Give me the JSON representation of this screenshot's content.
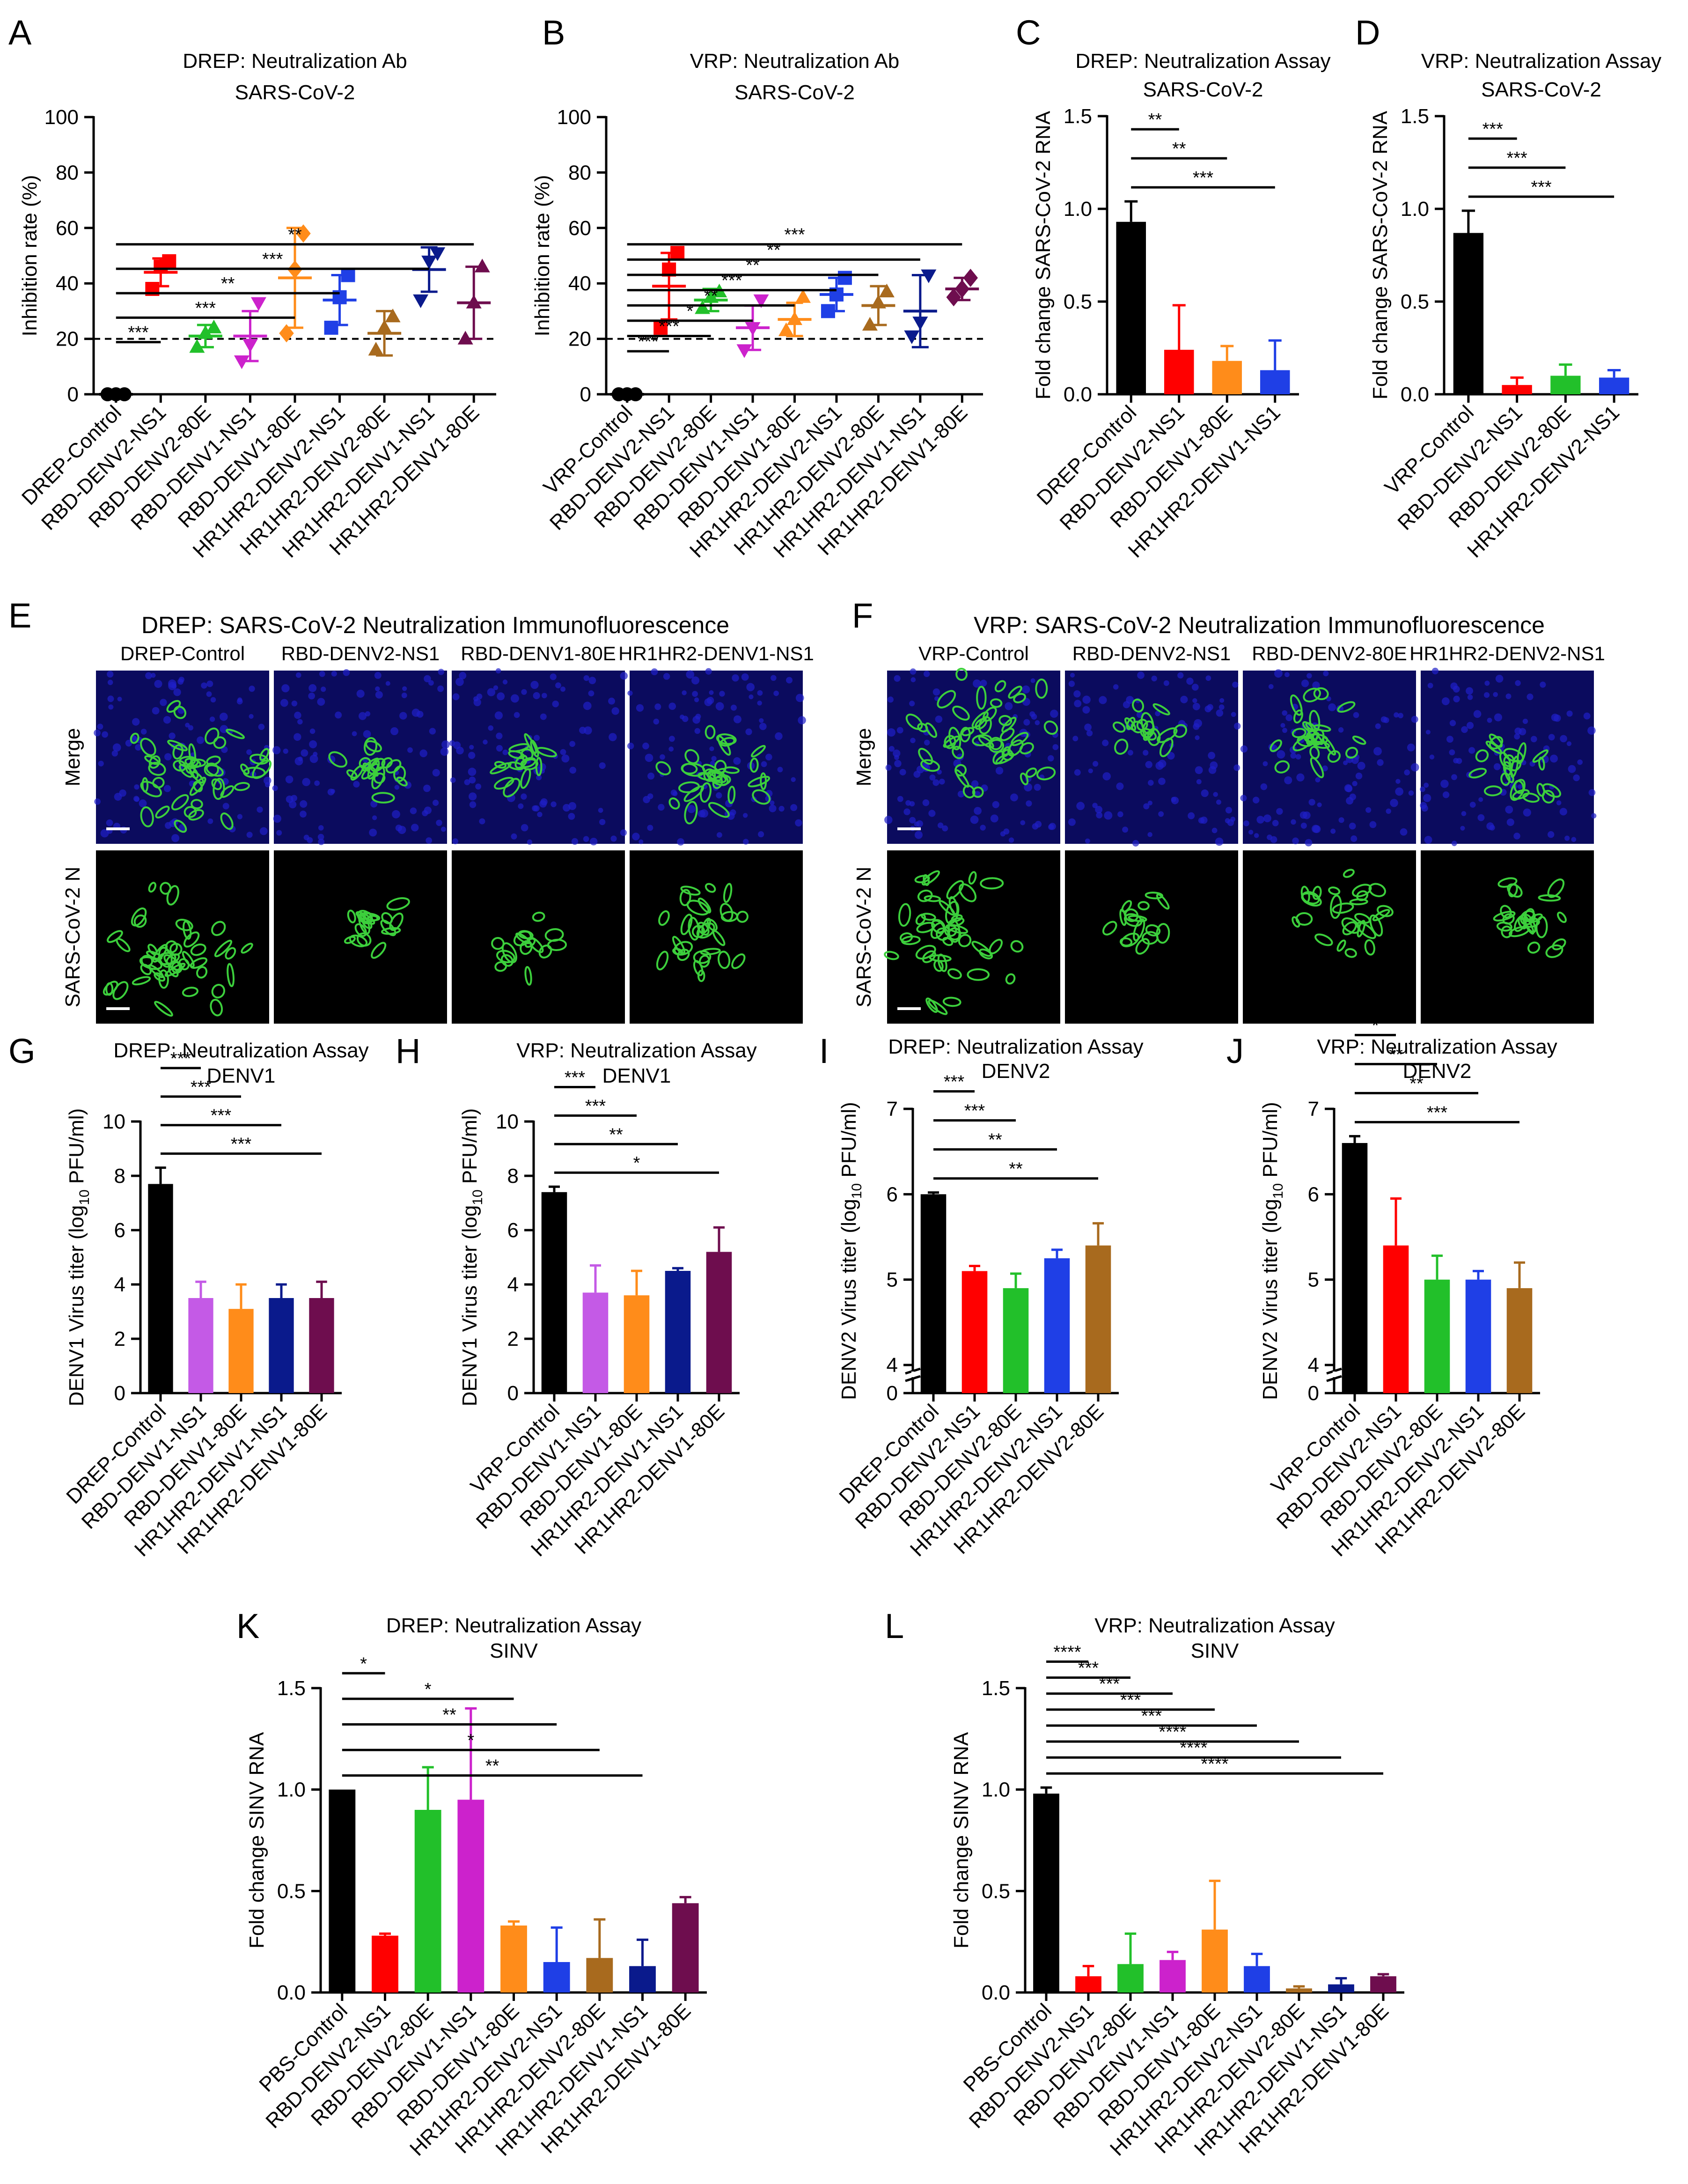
{
  "colors": {
    "black": "#000000",
    "red": "#ff0000",
    "green": "#22c02a",
    "magenta": "#cc22cc",
    "orange": "#ff8c1a",
    "blue": "#1f3fe6",
    "brown": "#a86a1e",
    "navy": "#0a1a8c",
    "maroon": "#6e0d4e",
    "purple": "#c45ae6",
    "nucleus_blue": "#1a1acc",
    "cell_green": "#3ccf3c"
  },
  "chart_data": [
    {
      "panel": "A",
      "type": "scatter",
      "title": "DREP: Neutralization Ab",
      "subtitle": "SARS-CoV-2",
      "ylabel": "Inhibition rate (%)",
      "ylim": [
        0,
        100
      ],
      "yticks": [
        "0",
        "20",
        "40",
        "60",
        "80",
        "100"
      ],
      "categories": [
        "DREP-Control",
        "RBD-DENV2-NS1",
        "RBD-DENV2-80E",
        "RBD-DENV1-NS1",
        "RBD-DENV1-80E",
        "HR1HR2-DENV2-NS1",
        "HR1HR2-DENV2-80E",
        "HR1HR2-DENV1-NS1",
        "HR1HR2-DENV1-80E"
      ],
      "colors": [
        "#000000",
        "#ff0000",
        "#22c02a",
        "#cc22cc",
        "#ff8c1a",
        "#1f3fe6",
        "#a86a1e",
        "#0a1a8c",
        "#6e0d4e"
      ],
      "markers": [
        "circle",
        "square",
        "triangle",
        "tri-down",
        "diamond",
        "square",
        "triangle",
        "tri-down",
        "triangle"
      ],
      "means": [
        0,
        44,
        21,
        21,
        42,
        34,
        22,
        45,
        33
      ],
      "sd": [
        0,
        5,
        4,
        9,
        18,
        9,
        8,
        8,
        13
      ],
      "points": [
        [
          0,
          0,
          0
        ],
        [
          38,
          46,
          48
        ],
        [
          17,
          22,
          24
        ],
        [
          12,
          18,
          33
        ],
        [
          22,
          45,
          58
        ],
        [
          24,
          35,
          43
        ],
        [
          16,
          24,
          28
        ],
        [
          34,
          48,
          51
        ],
        [
          20,
          33,
          46
        ]
      ],
      "reference_line": 20,
      "significance": [
        {
          "to": 1,
          "label": "***"
        },
        {
          "to": 4,
          "label": "***"
        },
        {
          "to": 5,
          "label": "**"
        },
        {
          "to": 7,
          "label": "***"
        },
        {
          "to": 8,
          "label": "**"
        }
      ]
    },
    {
      "panel": "B",
      "type": "scatter",
      "title": "VRP: Neutralization Ab",
      "subtitle": "SARS-CoV-2",
      "ylabel": "Inhibition rate (%)",
      "ylim": [
        0,
        100
      ],
      "yticks": [
        "0",
        "20",
        "40",
        "60",
        "80",
        "100"
      ],
      "categories": [
        "VRP-Control",
        "RBD-DENV2-NS1",
        "RBD-DENV2-80E",
        "RBD-DENV1-NS1",
        "RBD-DENV1-80E",
        "HR1HR2-DENV2-NS1",
        "HR1HR2-DENV2-80E",
        "HR1HR2-DENV1-NS1",
        "HR1HR2-DENV1-80E"
      ],
      "colors": [
        "#000000",
        "#ff0000",
        "#22c02a",
        "#cc22cc",
        "#ff8c1a",
        "#1f3fe6",
        "#a86a1e",
        "#0a1a8c",
        "#6e0d4e"
      ],
      "markers": [
        "circle",
        "square",
        "triangle",
        "tri-down",
        "triangle",
        "square",
        "triangle",
        "tri-down",
        "diamond"
      ],
      "means": [
        0,
        39,
        34,
        24,
        27,
        36,
        32,
        30,
        38
      ],
      "sd": [
        0,
        12,
        4,
        8,
        6,
        6,
        7,
        13,
        4
      ],
      "points": [
        [
          0,
          0,
          0
        ],
        [
          24,
          45,
          51
        ],
        [
          31,
          35,
          37
        ],
        [
          16,
          24,
          34
        ],
        [
          23,
          27,
          35
        ],
        [
          30,
          36,
          42
        ],
        [
          25,
          33,
          37
        ],
        [
          21,
          26,
          43
        ],
        [
          35,
          38,
          42
        ]
      ],
      "reference_line": 20,
      "significance": [
        {
          "to": 1,
          "label": "***"
        },
        {
          "to": 2,
          "label": "***"
        },
        {
          "to": 3,
          "label": "*"
        },
        {
          "to": 4,
          "label": "**"
        },
        {
          "to": 5,
          "label": "***"
        },
        {
          "to": 6,
          "label": "**"
        },
        {
          "to": 7,
          "label": "**"
        },
        {
          "to": 8,
          "label": "***"
        }
      ]
    },
    {
      "panel": "C",
      "type": "bar",
      "title": "DREP: Neutralization Assay",
      "subtitle": "SARS-CoV-2",
      "ylabel": "Fold change SARS-CoV-2 RNA",
      "ylim": [
        0,
        1.5
      ],
      "yticks": [
        "0.0",
        "0.5",
        "1.0",
        "1.5"
      ],
      "categories": [
        "DREP-Control",
        "RBD-DENV2-NS1",
        "RBD-DENV1-80E",
        "HR1HR2-DENV1-NS1"
      ],
      "colors": [
        "#000000",
        "#ff0000",
        "#ff8c1a",
        "#1f3fe6"
      ],
      "values": [
        0.93,
        0.24,
        0.18,
        0.13
      ],
      "errors": [
        0.11,
        0.24,
        0.08,
        0.16
      ],
      "significance": [
        {
          "to": 1,
          "label": "**"
        },
        {
          "to": 2,
          "label": "**"
        },
        {
          "to": 3,
          "label": "***"
        }
      ]
    },
    {
      "panel": "D",
      "type": "bar",
      "title": "VRP: Neutralization Assay",
      "subtitle": "SARS-CoV-2",
      "ylabel": "Fold change SARS-CoV-2 RNA",
      "ylim": [
        0,
        1.5
      ],
      "yticks": [
        "0.0",
        "0.5",
        "1.0",
        "1.5"
      ],
      "categories": [
        "VRP-Control",
        "RBD-DENV2-NS1",
        "RBD-DENV2-80E",
        "HR1HR2-DENV2-NS1"
      ],
      "colors": [
        "#000000",
        "#ff0000",
        "#22c02a",
        "#1f3fe6"
      ],
      "values": [
        0.87,
        0.05,
        0.1,
        0.09
      ],
      "errors": [
        0.12,
        0.04,
        0.06,
        0.04
      ],
      "significance": [
        {
          "to": 1,
          "label": "***"
        },
        {
          "to": 2,
          "label": "***"
        },
        {
          "to": 3,
          "label": "***"
        }
      ]
    },
    {
      "panel": "G",
      "type": "bar",
      "title": "DREP: Neutralization Assay",
      "subtitle": "DENV1",
      "ylabel": "DENV1 Virus titer (log",
      "ylabel_sub": "10",
      "ylabel_end": " PFU/ml)",
      "ylim": [
        0,
        10
      ],
      "yticks": [
        "0",
        "2",
        "4",
        "6",
        "8",
        "10"
      ],
      "categories": [
        "DREP-Control",
        "RBD-DENV1-NS1",
        "RBD-DENV1-80E",
        "HR1HR2-DENV1-NS1",
        "HR1HR2-DENV1-80E"
      ],
      "colors": [
        "#000000",
        "#c45ae6",
        "#ff8c1a",
        "#0a1a8c",
        "#6e0d4e"
      ],
      "values": [
        7.7,
        3.5,
        3.1,
        3.5,
        3.5
      ],
      "errors": [
        0.6,
        0.6,
        0.9,
        0.5,
        0.6
      ],
      "significance": [
        {
          "to": 1,
          "label": "***"
        },
        {
          "to": 2,
          "label": "***"
        },
        {
          "to": 3,
          "label": "***"
        },
        {
          "to": 4,
          "label": "***"
        }
      ]
    },
    {
      "panel": "H",
      "type": "bar",
      "title": "VRP: Neutralization Assay",
      "subtitle": "DENV1",
      "ylabel": "DENV1 Virus titer (log",
      "ylabel_sub": "10",
      "ylabel_end": " PFU/ml)",
      "ylim": [
        0,
        10
      ],
      "yticks": [
        "0",
        "2",
        "4",
        "6",
        "8",
        "10"
      ],
      "categories": [
        "VRP-Control",
        "RBD-DENV1-NS1",
        "RBD-DENV1-80E",
        "HR1HR2-DENV1-NS1",
        "HR1HR2-DENV1-80E"
      ],
      "colors": [
        "#000000",
        "#c45ae6",
        "#ff8c1a",
        "#0a1a8c",
        "#6e0d4e"
      ],
      "values": [
        7.4,
        3.7,
        3.6,
        4.5,
        5.2
      ],
      "errors": [
        0.2,
        1.0,
        0.9,
        0.1,
        0.9
      ],
      "significance": [
        {
          "to": 1,
          "label": "***"
        },
        {
          "to": 2,
          "label": "***"
        },
        {
          "to": 3,
          "label": "**"
        },
        {
          "to": 4,
          "label": "*"
        }
      ]
    },
    {
      "panel": "I",
      "type": "bar",
      "axis_break": true,
      "title": "DREP: Neutralization Assay",
      "subtitle": "DENV2",
      "ylabel": "DENV2 Virus titer (log",
      "ylabel_sub": "10",
      "ylabel_end": " PFU/ml)",
      "ylim": [
        4,
        7
      ],
      "yticks": [
        "4",
        "5",
        "6",
        "7"
      ],
      "categories": [
        "DREP-Control",
        "RBD-DENV2-NS1",
        "RBD-DENV2-80E",
        "HR1HR2-DENV2-NS1",
        "HR1HR2-DENV2-80E"
      ],
      "colors": [
        "#000000",
        "#ff0000",
        "#22c02a",
        "#1f3fe6",
        "#a86a1e"
      ],
      "values": [
        6.0,
        5.1,
        4.9,
        5.25,
        5.4
      ],
      "errors": [
        0.02,
        0.06,
        0.17,
        0.1,
        0.26
      ],
      "significance": [
        {
          "to": 1,
          "label": "***"
        },
        {
          "to": 2,
          "label": "***"
        },
        {
          "to": 3,
          "label": "**"
        },
        {
          "to": 4,
          "label": "**"
        }
      ]
    },
    {
      "panel": "J",
      "type": "bar",
      "axis_break": true,
      "title": "VRP: Neutralization Assay",
      "subtitle": "DENV2",
      "ylabel": "DENV2 Virus titer (log",
      "ylabel_sub": "10",
      "ylabel_end": " PFU/ml)",
      "ylim": [
        4,
        7
      ],
      "yticks": [
        "4",
        "5",
        "6",
        "7"
      ],
      "categories": [
        "VRP-Control",
        "RBD-DENV2-NS1",
        "RBD-DENV2-80E",
        "HR1HR2-DENV2-NS1",
        "HR1HR2-DENV2-80E"
      ],
      "colors": [
        "#000000",
        "#ff0000",
        "#22c02a",
        "#1f3fe6",
        "#a86a1e"
      ],
      "values": [
        6.6,
        5.4,
        5.0,
        5.0,
        4.9
      ],
      "errors": [
        0.08,
        0.55,
        0.28,
        0.1,
        0.3
      ],
      "significance": [
        {
          "to": 1,
          "label": "*"
        },
        {
          "to": 2,
          "label": "**"
        },
        {
          "to": 3,
          "label": "**"
        },
        {
          "to": 4,
          "label": "***"
        }
      ]
    },
    {
      "panel": "K",
      "type": "bar",
      "title": "DREP: Neutralization Assay",
      "subtitle": "SINV",
      "ylabel": "Fold change SINV RNA",
      "ylim": [
        0,
        1.5
      ],
      "yticks": [
        "0.0",
        "0.5",
        "1.0",
        "1.5"
      ],
      "categories": [
        "PBS-Control",
        "RBD-DENV2-NS1",
        "RBD-DENV2-80E",
        "RBD-DENV1-NS1",
        "RBD-DENV1-80E",
        "HR1HR2-DENV2-NS1",
        "HR1HR2-DENV2-80E",
        "HR1HR2-DENV1-NS1",
        "HR1HR2-DENV1-80E"
      ],
      "colors": [
        "#000000",
        "#ff0000",
        "#22c02a",
        "#cc22cc",
        "#ff8c1a",
        "#1f3fe6",
        "#a86a1e",
        "#0a1a8c",
        "#6e0d4e"
      ],
      "values": [
        1.0,
        0.28,
        0.9,
        0.95,
        0.33,
        0.15,
        0.17,
        0.13,
        0.44
      ],
      "errors": [
        0,
        0.01,
        0.21,
        0.45,
        0.02,
        0.17,
        0.19,
        0.13,
        0.03
      ],
      "significance": [
        {
          "to": 1,
          "label": "*"
        },
        {
          "to": 4,
          "label": "*"
        },
        {
          "to": 5,
          "label": "**"
        },
        {
          "to": 6,
          "label": "*"
        },
        {
          "to": 7,
          "label": "**"
        }
      ]
    },
    {
      "panel": "L",
      "type": "bar",
      "title": "VRP: Neutralization Assay",
      "subtitle": "SINV",
      "ylabel": "Fold change SINV RNA",
      "ylim": [
        0,
        1.5
      ],
      "yticks": [
        "0.0",
        "0.5",
        "1.0",
        "1.5"
      ],
      "categories": [
        "PBS-Control",
        "RBD-DENV2-NS1",
        "RBD-DENV2-80E",
        "RBD-DENV1-NS1",
        "RBD-DENV1-80E",
        "HR1HR2-DENV2-NS1",
        "HR1HR2-DENV2-80E",
        "HR1HR2-DENV1-NS1",
        "HR1HR2-DENV1-80E"
      ],
      "colors": [
        "#000000",
        "#ff0000",
        "#22c02a",
        "#cc22cc",
        "#ff8c1a",
        "#1f3fe6",
        "#a86a1e",
        "#0a1a8c",
        "#6e0d4e"
      ],
      "values": [
        0.98,
        0.08,
        0.14,
        0.16,
        0.31,
        0.13,
        0.02,
        0.04,
        0.08
      ],
      "errors": [
        0.03,
        0.05,
        0.15,
        0.04,
        0.24,
        0.06,
        0.01,
        0.03,
        0.01
      ],
      "significance": [
        {
          "to": 1,
          "label": "****"
        },
        {
          "to": 2,
          "label": "***"
        },
        {
          "to": 3,
          "label": "***"
        },
        {
          "to": 4,
          "label": "***"
        },
        {
          "to": 5,
          "label": "***"
        },
        {
          "to": 6,
          "label": "****"
        },
        {
          "to": 7,
          "label": "****"
        },
        {
          "to": 8,
          "label": "****"
        }
      ]
    }
  ],
  "immunofluorescence": [
    {
      "panel": "E",
      "title": "DREP: SARS-CoV-2 Neutralization Immunofluorescence",
      "columns": [
        "DREP-Control",
        "RBD-DENV2-NS1",
        "RBD-DENV1-80E",
        "HR1HR2-DENV1-NS1"
      ],
      "rows": [
        "Merge",
        "SARS-CoV-2 N"
      ],
      "infection_level": [
        1.0,
        0.3,
        0.25,
        0.6
      ]
    },
    {
      "panel": "F",
      "title": "VRP: SARS-CoV-2 Neutralization Immunofluorescence",
      "columns": [
        "VRP-Control",
        "RBD-DENV2-NS1",
        "RBD-DENV2-80E",
        "HR1HR2-DENV2-NS1"
      ],
      "rows": [
        "Merge",
        "SARS-CoV-2 N"
      ],
      "infection_level": [
        1.0,
        0.25,
        0.5,
        0.45
      ]
    }
  ]
}
